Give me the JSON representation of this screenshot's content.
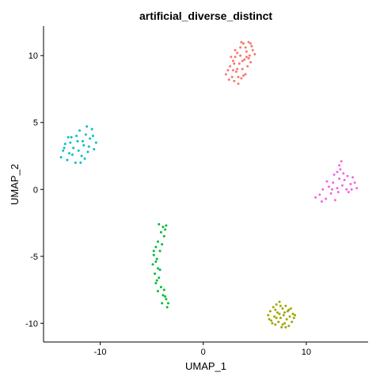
{
  "chart_data": {
    "type": "scatter",
    "title": "artificial_diverse_distinct",
    "xlabel": "UMAP_1",
    "ylabel": "UMAP_2",
    "xlim": [
      -15.5,
      16.0
    ],
    "ylim": [
      -11.4,
      12.2
    ],
    "x_ticks": [
      -10,
      0,
      10
    ],
    "x_tick_labels": [
      "-10",
      "0",
      "10"
    ],
    "y_ticks": [
      -10,
      -5,
      0,
      5,
      10
    ],
    "y_tick_labels": [
      "-10",
      "-5",
      "0",
      "5",
      "10"
    ],
    "grid": false,
    "legend": "none",
    "series": [
      {
        "color": "#F8766D",
        "points": [
          [
            2.2,
            8.6
          ],
          [
            2.4,
            8.9
          ],
          [
            2.6,
            9.2
          ],
          [
            2.8,
            8.4
          ],
          [
            2.9,
            9.6
          ],
          [
            3.0,
            8.1
          ],
          [
            3.1,
            9.9
          ],
          [
            3.2,
            8.8
          ],
          [
            3.3,
            10.2
          ],
          [
            3.4,
            7.9
          ],
          [
            3.5,
            9.4
          ],
          [
            3.6,
            10.6
          ],
          [
            3.7,
            8.3
          ],
          [
            3.8,
            9.0
          ],
          [
            3.9,
            10.9
          ],
          [
            4.0,
            9.7
          ],
          [
            4.1,
            8.6
          ],
          [
            4.2,
            10.3
          ],
          [
            4.3,
            9.2
          ],
          [
            4.4,
            11.0
          ],
          [
            4.5,
            10.0
          ],
          [
            4.6,
            9.5
          ],
          [
            4.7,
            10.7
          ],
          [
            4.8,
            10.4
          ],
          [
            5.0,
            10.1
          ],
          [
            2.7,
            9.9
          ],
          [
            3.3,
            9.0
          ],
          [
            3.9,
            8.5
          ],
          [
            4.4,
            9.8
          ],
          [
            2.5,
            8.2
          ],
          [
            3.0,
            9.4
          ],
          [
            3.6,
            10.0
          ],
          [
            4.1,
            10.6
          ],
          [
            4.6,
            10.9
          ],
          [
            3.4,
            8.4
          ],
          [
            2.9,
            8.9
          ],
          [
            3.8,
            9.6
          ],
          [
            4.2,
            9.9
          ],
          [
            3.1,
            10.4
          ],
          [
            3.7,
            11.0
          ]
        ]
      },
      {
        "color": "#A3A500",
        "points": [
          [
            6.3,
            -9.4
          ],
          [
            6.5,
            -9.1
          ],
          [
            6.6,
            -9.8
          ],
          [
            6.8,
            -8.8
          ],
          [
            6.9,
            -9.5
          ],
          [
            7.0,
            -10.1
          ],
          [
            7.1,
            -8.6
          ],
          [
            7.2,
            -9.2
          ],
          [
            7.3,
            -9.9
          ],
          [
            7.4,
            -8.4
          ],
          [
            7.5,
            -9.6
          ],
          [
            7.6,
            -10.3
          ],
          [
            7.7,
            -8.9
          ],
          [
            7.8,
            -9.4
          ],
          [
            7.9,
            -10.0
          ],
          [
            8.0,
            -8.7
          ],
          [
            8.1,
            -9.7
          ],
          [
            8.2,
            -9.1
          ],
          [
            8.3,
            -10.2
          ],
          [
            8.4,
            -9.5
          ],
          [
            8.5,
            -8.9
          ],
          [
            8.6,
            -9.9
          ],
          [
            8.7,
            -9.3
          ],
          [
            8.8,
            -9.6
          ],
          [
            7.0,
            -9.0
          ],
          [
            7.5,
            -8.7
          ],
          [
            8.0,
            -10.3
          ],
          [
            6.7,
            -10.0
          ],
          [
            7.7,
            -10.1
          ],
          [
            8.3,
            -9.0
          ],
          [
            7.1,
            -9.6
          ],
          [
            7.9,
            -9.2
          ],
          [
            6.4,
            -9.7
          ],
          [
            8.9,
            -9.4
          ],
          [
            7.4,
            -9.3
          ]
        ]
      },
      {
        "color": "#00BA38",
        "points": [
          [
            -4.3,
            -2.6
          ],
          [
            -3.9,
            -2.8
          ],
          [
            -3.6,
            -2.7
          ],
          [
            -4.1,
            -3.2
          ],
          [
            -3.8,
            -3.5
          ],
          [
            -4.4,
            -3.9
          ],
          [
            -4.6,
            -4.3
          ],
          [
            -4.2,
            -4.6
          ],
          [
            -4.8,
            -4.9
          ],
          [
            -4.5,
            -5.2
          ],
          [
            -4.9,
            -5.6
          ],
          [
            -4.4,
            -5.9
          ],
          [
            -4.7,
            -6.3
          ],
          [
            -4.3,
            -6.6
          ],
          [
            -4.6,
            -7.0
          ],
          [
            -4.1,
            -7.3
          ],
          [
            -4.4,
            -7.6
          ],
          [
            -3.9,
            -7.9
          ],
          [
            -3.6,
            -8.2
          ],
          [
            -4.0,
            -8.5
          ],
          [
            -3.5,
            -8.8
          ],
          [
            -3.8,
            -7.5
          ],
          [
            -4.2,
            -6.0
          ],
          [
            -4.8,
            -4.6
          ],
          [
            -3.7,
            -3.0
          ],
          [
            -4.5,
            -6.8
          ],
          [
            -3.7,
            -8.0
          ],
          [
            -4.0,
            -4.1
          ],
          [
            -4.6,
            -5.4
          ],
          [
            -3.4,
            -8.5
          ]
        ]
      },
      {
        "color": "#00BFC4",
        "points": [
          [
            -13.8,
            2.4
          ],
          [
            -13.6,
            2.9
          ],
          [
            -13.4,
            3.4
          ],
          [
            -13.2,
            2.2
          ],
          [
            -13.0,
            2.7
          ],
          [
            -12.8,
            3.9
          ],
          [
            -12.6,
            3.1
          ],
          [
            -12.4,
            2.0
          ],
          [
            -12.2,
            3.6
          ],
          [
            -12.0,
            4.4
          ],
          [
            -11.8,
            2.5
          ],
          [
            -11.6,
            3.3
          ],
          [
            -11.4,
            4.1
          ],
          [
            -11.2,
            2.8
          ],
          [
            -11.0,
            3.8
          ],
          [
            -10.8,
            4.5
          ],
          [
            -10.6,
            3.0
          ],
          [
            -10.4,
            3.5
          ],
          [
            -11.9,
            2.0
          ],
          [
            -12.7,
            2.6
          ],
          [
            -13.5,
            3.1
          ],
          [
            -11.5,
            2.3
          ],
          [
            -11.1,
            3.2
          ],
          [
            -12.3,
            4.0
          ],
          [
            -12.9,
            3.5
          ],
          [
            -11.3,
            4.7
          ],
          [
            -12.1,
            2.9
          ],
          [
            -10.7,
            4.0
          ],
          [
            -13.1,
            3.9
          ],
          [
            -11.7,
            3.6
          ]
        ]
      },
      {
        "color": "#619CFF",
        "points": []
      },
      {
        "color": "#F564E3",
        "points": [
          [
            10.9,
            -0.6
          ],
          [
            11.3,
            -0.4
          ],
          [
            11.6,
            0.0
          ],
          [
            11.9,
            -0.7
          ],
          [
            12.2,
            0.2
          ],
          [
            12.4,
            -0.3
          ],
          [
            12.6,
            0.5
          ],
          [
            12.8,
            -0.8
          ],
          [
            13.0,
            0.1
          ],
          [
            13.2,
            0.8
          ],
          [
            13.3,
            1.5
          ],
          [
            13.4,
            2.1
          ],
          [
            13.2,
            1.8
          ],
          [
            13.5,
            0.3
          ],
          [
            13.7,
            0.7
          ],
          [
            13.9,
            0.0
          ],
          [
            14.1,
            -0.2
          ],
          [
            14.3,
            0.4
          ],
          [
            14.5,
            0.9
          ],
          [
            14.7,
            0.5
          ],
          [
            14.9,
            0.1
          ],
          [
            12.0,
            0.6
          ],
          [
            12.7,
            1.1
          ],
          [
            13.1,
            -0.2
          ],
          [
            14.0,
            1.0
          ],
          [
            11.5,
            -0.9
          ],
          [
            12.5,
            0.0
          ],
          [
            13.6,
            1.2
          ],
          [
            14.4,
            0.0
          ],
          [
            13.0,
            1.3
          ]
        ]
      }
    ]
  }
}
